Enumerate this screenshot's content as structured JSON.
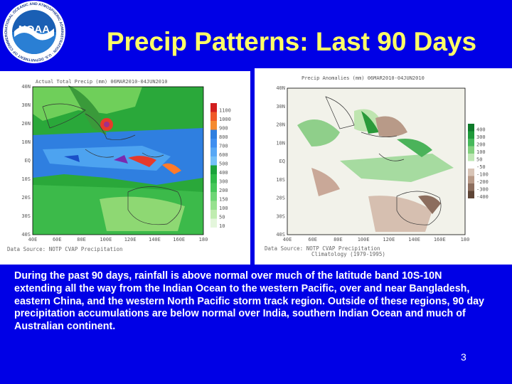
{
  "header": {
    "title": "Precip Patterns: Last 90 Days",
    "logo_text": "NOAA",
    "logo_ring_text": "NATIONAL OCEANIC AND ATMOSPHERIC ADMINISTRATION · U.S. DEPARTMENT OF COMMERCE"
  },
  "left_map": {
    "caption": "Actual Total Precip (mm) 06MAR2010-04JUN2010",
    "source": "Data Source: NOTP CVAP Precipitation",
    "legend": [
      "1100",
      "1000",
      "900",
      "800",
      "700",
      "600",
      "500",
      "400",
      "300",
      "200",
      "150",
      "100",
      "50",
      "10"
    ],
    "lat_labels": [
      "40N",
      "30N",
      "20N",
      "10N",
      "EQ",
      "10S",
      "20S",
      "30S",
      "40S"
    ],
    "lon_labels": [
      "40E",
      "60E",
      "80E",
      "100E",
      "120E",
      "140E",
      "160E",
      "180"
    ]
  },
  "right_map": {
    "caption": "Precip Anomalies (mm) 06MAR2010-04JUN2010",
    "source_line1": "Data Source: NOTP CVAP Precipitation",
    "source_line2": "Climatology (1979-1995)",
    "legend": [
      "400",
      "300",
      "200",
      "100",
      "50",
      "-50",
      "-100",
      "-200",
      "-300",
      "-400"
    ],
    "lat_labels": [
      "40N",
      "30N",
      "20N",
      "10N",
      "EQ",
      "10S",
      "20S",
      "30S",
      "40S"
    ],
    "lon_labels": [
      "40E",
      "60E",
      "80E",
      "100E",
      "120E",
      "140E",
      "160E",
      "180"
    ]
  },
  "body": {
    "text": "During the past 90 days, rainfall is above normal over much of the latitude band 10S-10N extending all the way from the Indian Ocean to the western Pacific, over  and near Bangladesh, eastern China,  and the western North Pacific storm track region.  Outside of these regions, 90 day precipitation accumulations are below normal over India, southern Indian Ocean and much of Australian continent."
  },
  "footer": {
    "page_number": "3"
  },
  "colors": {
    "background": "#0000e6",
    "title": "#ffff66",
    "body_text": "#ffffff"
  }
}
